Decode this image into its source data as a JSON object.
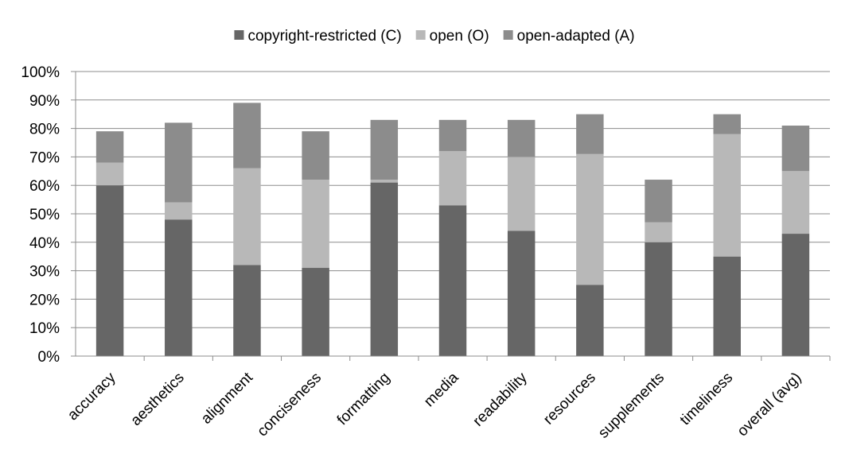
{
  "chart_data": {
    "type": "bar",
    "stacked": true,
    "categories": [
      "accuracy",
      "aesthetics",
      "alignment",
      "conciseness",
      "formatting",
      "media",
      "readability",
      "resources",
      "supplements",
      "timeliness",
      "overall (avg)"
    ],
    "series": [
      {
        "name": "copyright-restricted (C)",
        "color": "#666666",
        "values": [
          60,
          48,
          32,
          31,
          61,
          53,
          44,
          25,
          40,
          35,
          43
        ]
      },
      {
        "name": "open (O)",
        "color": "#b8b8b8",
        "values": [
          8,
          6,
          34,
          31,
          1,
          19,
          26,
          46,
          7,
          43,
          22
        ]
      },
      {
        "name": "open-adapted (A)",
        "color": "#8c8c8c",
        "values": [
          11,
          28,
          23,
          17,
          21,
          11,
          13,
          14,
          15,
          7,
          16
        ]
      }
    ],
    "yticks": [
      "0%",
      "10%",
      "20%",
      "30%",
      "40%",
      "50%",
      "60%",
      "70%",
      "80%",
      "90%",
      "100%"
    ],
    "ylim": [
      0,
      100
    ],
    "grid": true,
    "legend": "top"
  }
}
